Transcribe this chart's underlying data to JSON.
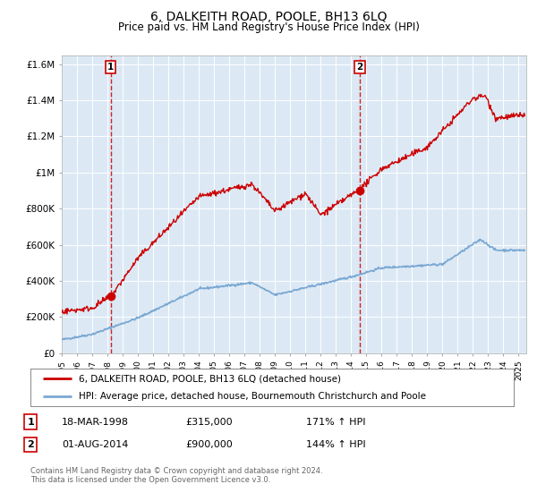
{
  "title": "6, DALKEITH ROAD, POOLE, BH13 6LQ",
  "subtitle": "Price paid vs. HM Land Registry's House Price Index (HPI)",
  "title_fontsize": 10,
  "subtitle_fontsize": 8.5,
  "bg_color": "#dce9f5",
  "red_line_color": "#cc0000",
  "blue_line_color": "#7aa8d2",
  "sale1_date": 1998.21,
  "sale1_price": 315000,
  "sale1_label": "1",
  "sale2_date": 2014.58,
  "sale2_price": 900000,
  "sale2_label": "2",
  "legend_line1": "6, DALKEITH ROAD, POOLE, BH13 6LQ (detached house)",
  "legend_line2": "HPI: Average price, detached house, Bournemouth Christchurch and Poole",
  "table_row1": [
    "1",
    "18-MAR-1998",
    "£315,000",
    "171% ↑ HPI"
  ],
  "table_row2": [
    "2",
    "01-AUG-2014",
    "£900,000",
    "144% ↑ HPI"
  ],
  "footer": "Contains HM Land Registry data © Crown copyright and database right 2024.\nThis data is licensed under the Open Government Licence v3.0.",
  "ylim": [
    0,
    1650000
  ],
  "xlim_start": 1995.0,
  "xlim_end": 2025.5,
  "yticks": [
    0,
    200000,
    400000,
    600000,
    800000,
    1000000,
    1200000,
    1400000,
    1600000
  ],
  "ytick_labels": [
    "£0",
    "£200K",
    "£400K",
    "£600K",
    "£800K",
    "£1M",
    "£1.2M",
    "£1.4M",
    "£1.6M"
  ]
}
